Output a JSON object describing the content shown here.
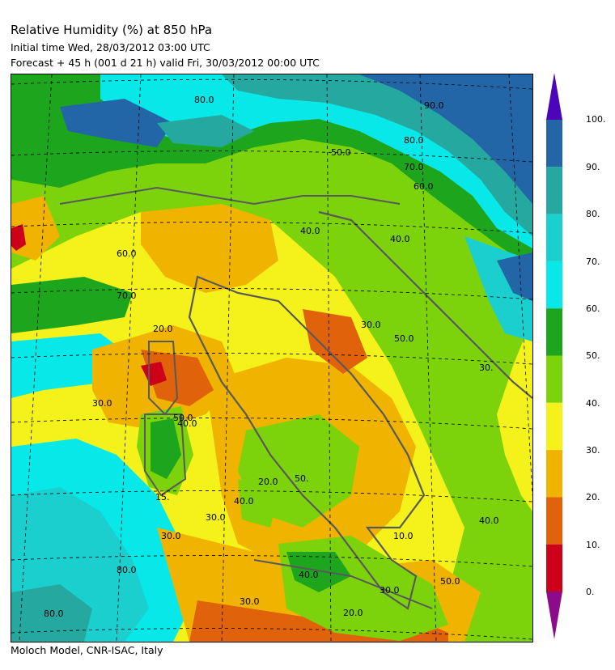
{
  "header": {
    "title": "Relative Humidity (%) at 850 hPa",
    "initial_time": "Initial time  Wed, 28/03/2012  03:00 UTC",
    "forecast": "Forecast  +  45 h  (001 d 21 h)  valid Fri, 30/03/2012 00:00 UTC"
  },
  "footer": "Moloch Model, CNR-ISAC, Italy",
  "colorbar": {
    "levels": [
      "0.",
      "10.",
      "20.",
      "30.",
      "40.",
      "50.",
      "60.",
      "70.",
      "80.",
      "90.",
      "100."
    ],
    "colors": {
      "below_min": "#8b0b8b",
      "bins": [
        "#cc0018",
        "#e0620a",
        "#f0b400",
        "#f4f21a",
        "#7cd30c",
        "#1ea51e",
        "#08e8e8",
        "#1ccfcf",
        "#25a8a0",
        "#2266a8"
      ],
      "above_max": "#4a06b8"
    }
  },
  "map": {
    "contour_labels": [
      "80.0",
      "90.0",
      "80.0",
      "70.0",
      "60.0",
      "50.0",
      "40.0",
      "30.0",
      "20.0",
      "30.0",
      "40.0",
      "50.0",
      "15.",
      "40.0",
      "30.0",
      "20.0",
      "10.0",
      "20.0",
      "30.0",
      "50.",
      "30.0",
      "40.0",
      "50.0",
      "30.",
      "80.0",
      "70.0",
      "40.0",
      "80.0",
      "60.0",
      "30.0",
      "40.0",
      "50.0"
    ],
    "colors": {
      "deep_humid": "#2266a8",
      "humid": "#25a8a0",
      "cyan": "#08e8e8",
      "cyan2": "#1ccfcf",
      "green_dark": "#1ea51e",
      "green": "#7cd30c",
      "yellow": "#f4f21a",
      "orange_light": "#f0b400",
      "orange": "#e0620a",
      "red": "#cc0018",
      "coast": "#595959",
      "grid": "#000000"
    }
  }
}
